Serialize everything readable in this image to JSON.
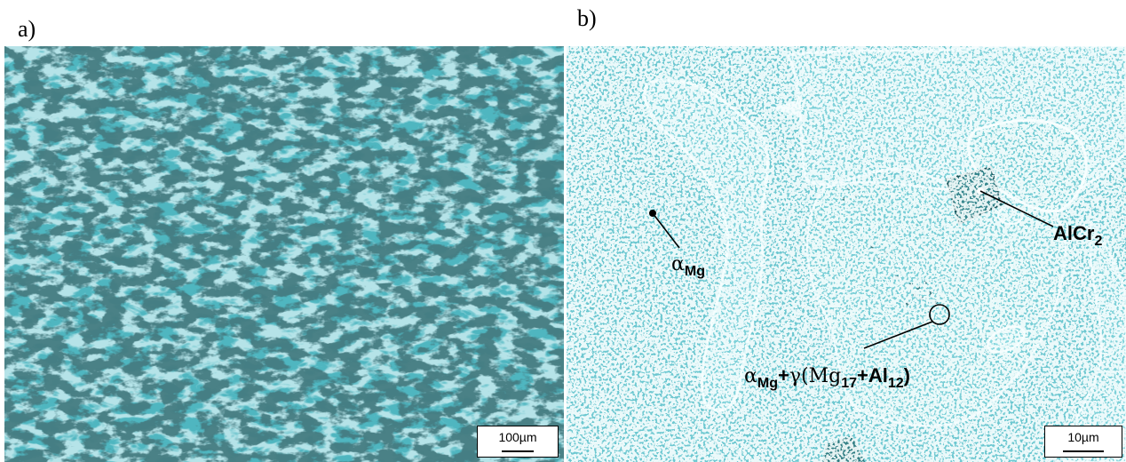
{
  "panels": {
    "a": {
      "label": "a)",
      "scale_bar": "100µm"
    },
    "b": {
      "label": "b)",
      "scale_bar": "10µm"
    }
  },
  "annotations": {
    "alpha_mg": {
      "greek": "α",
      "sub": "Mg"
    },
    "alcr2": {
      "base": "AlCr",
      "sub": "2"
    },
    "eutectic": {
      "alpha": "α",
      "alpha_sub": "Mg",
      "plus": "+",
      "gamma": "γ",
      "open": "(Mg",
      "mg_sub": "17",
      "plus2": "+Al",
      "al_sub": "12",
      "close": ")"
    }
  },
  "colors": {
    "panel_a_bg": "#4fb6c0",
    "panel_b_bg": "#6cc9d2",
    "text": "#000000"
  }
}
